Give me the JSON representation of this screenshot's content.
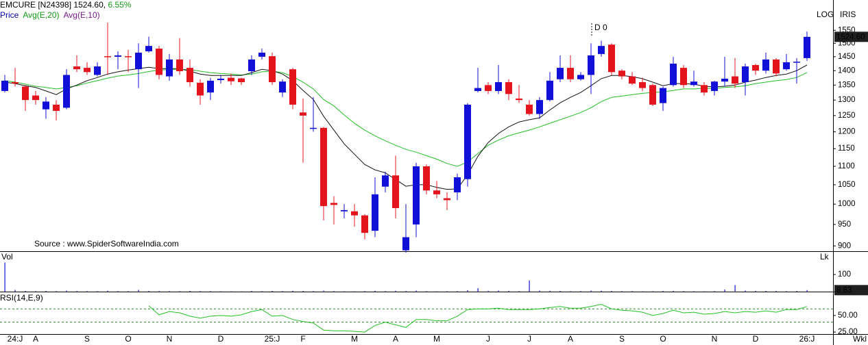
{
  "chart_data": [
    {
      "type": "candlestick",
      "title": "EMCURE [N24398]",
      "price_text": "1524.60,",
      "change_text": "6.55%",
      "log_label": "LOG",
      "scale_label": "IRIS",
      "source": "Source : www.SpiderSoftwareIndia.com",
      "x_label": "Wkl",
      "price_tag": "1524.60",
      "log": true,
      "ylim": [
        888,
        1673
      ],
      "yticks": [
        900,
        950,
        1000,
        1050,
        1100,
        1150,
        1200,
        1250,
        1300,
        1350,
        1400,
        1450,
        1500,
        1550
      ],
      "categories": [
        null,
        "24:J",
        null,
        "A",
        null,
        null,
        null,
        null,
        "S",
        null,
        null,
        null,
        "O",
        null,
        null,
        null,
        "N",
        null,
        null,
        null,
        null,
        "D",
        null,
        null,
        null,
        null,
        "25:J",
        null,
        null,
        "F",
        null,
        null,
        null,
        null,
        "M",
        null,
        null,
        null,
        "A",
        null,
        null,
        null,
        "M",
        null,
        null,
        null,
        null,
        "J",
        null,
        null,
        null,
        "J",
        null,
        null,
        null,
        "A",
        null,
        null,
        null,
        null,
        "S",
        null,
        null,
        null,
        "O",
        null,
        null,
        null,
        null,
        "N",
        null,
        null,
        null,
        "D",
        null,
        null,
        null,
        null,
        "26:J"
      ],
      "annotations": [
        {
          "text": "D 0",
          "index": 57
        }
      ],
      "series": [
        {
          "name": "Price",
          "color": "#1010d8",
          "down_color": "#e4141c",
          "label_color": "#0000aa",
          "open": [
            1330,
            1360,
            1345,
            1315,
            1270,
            1285,
            1275,
            1415,
            1410,
            1385,
            1452,
            1450,
            1452,
            1405,
            1470,
            1480,
            1380,
            1440,
            1410,
            1358,
            1325,
            1367,
            1375,
            1373,
            1398,
            1450,
            1452,
            1325,
            1405,
            1260,
            1210,
            1212,
            1003,
            982,
            982,
            972,
            935,
            1045,
            1075,
            890,
            950,
            1100,
            1035,
            1015,
            1030,
            1065,
            1330,
            1350,
            1330,
            1360,
            1305,
            1285,
            1255,
            1300,
            1370,
            1410,
            1370,
            1385,
            1460,
            1495,
            1400,
            1380,
            1360,
            1350,
            1290,
            1350,
            1410,
            1350,
            1350,
            1330,
            1362,
            1380,
            1360,
            1420,
            1400,
            1440,
            1405,
            1430,
            1445
          ],
          "high": [
            1385,
            1410,
            1350,
            1330,
            1310,
            1300,
            1405,
            1455,
            1430,
            1430,
            1580,
            1470,
            1475,
            1500,
            1525,
            1490,
            1460,
            1520,
            1440,
            1370,
            1375,
            1385,
            1390,
            1375,
            1455,
            1480,
            1465,
            1370,
            1410,
            1305,
            1310,
            1215,
            1020,
            1000,
            1000,
            975,
            1070,
            1085,
            1130,
            1000,
            1110,
            1105,
            1060,
            1030,
            1080,
            1290,
            1410,
            1360,
            1420,
            1370,
            1350,
            1300,
            1310,
            1395,
            1455,
            1455,
            1395,
            1500,
            1510,
            1500,
            1405,
            1395,
            1375,
            1355,
            1345,
            1450,
            1420,
            1400,
            1360,
            1365,
            1450,
            1445,
            1425,
            1425,
            1465,
            1445,
            1460,
            1445,
            1545
          ],
          "low": [
            1325,
            1345,
            1265,
            1285,
            1240,
            1235,
            1270,
            1395,
            1385,
            1380,
            1385,
            1405,
            1395,
            1340,
            1465,
            1370,
            1365,
            1385,
            1345,
            1285,
            1300,
            1355,
            1350,
            1350,
            1385,
            1440,
            1350,
            1310,
            1270,
            1110,
            1200,
            960,
            950,
            965,
            945,
            915,
            920,
            1030,
            965,
            885,
            920,
            1025,
            1015,
            985,
            1010,
            1045,
            1325,
            1320,
            1320,
            1300,
            1290,
            1250,
            1240,
            1295,
            1360,
            1360,
            1365,
            1320,
            1450,
            1385,
            1370,
            1350,
            1330,
            1280,
            1265,
            1345,
            1340,
            1345,
            1315,
            1315,
            1345,
            1340,
            1315,
            1385,
            1390,
            1380,
            1400,
            1355,
            1435
          ],
          "close": [
            1365,
            1355,
            1300,
            1300,
            1295,
            1265,
            1385,
            1405,
            1395,
            1415,
            1450,
            1455,
            1450,
            1465,
            1490,
            1385,
            1440,
            1398,
            1360,
            1315,
            1365,
            1372,
            1363,
            1360,
            1440,
            1465,
            1360,
            1362,
            1285,
            1250,
            1212,
            995,
            998,
            985,
            972,
            930,
            1025,
            1075,
            990,
            920,
            1100,
            1035,
            1025,
            1010,
            1070,
            1285,
            1340,
            1330,
            1360,
            1320,
            1300,
            1255,
            1300,
            1365,
            1410,
            1370,
            1385,
            1455,
            1490,
            1395,
            1380,
            1355,
            1340,
            1285,
            1340,
            1425,
            1350,
            1362,
            1325,
            1362,
            1372,
            1355,
            1415,
            1400,
            1440,
            1390,
            1430,
            1432,
            1524.6
          ]
        },
        {
          "name": "Avg(E,20)",
          "color": "#22c022",
          "label_color": "#119911",
          "values": [
            1365,
            1360,
            1353,
            1346,
            1342,
            1337,
            1342,
            1348,
            1357,
            1365,
            1374,
            1381,
            1385,
            1390,
            1397,
            1402,
            1404,
            1404,
            1404,
            1398,
            1393,
            1390,
            1388,
            1385,
            1388,
            1396,
            1398,
            1393,
            1379,
            1360,
            1337,
            1302,
            1281,
            1252,
            1226,
            1205,
            1188,
            1173,
            1160,
            1148,
            1140,
            1130,
            1120,
            1108,
            1100,
            1112,
            1136,
            1160,
            1175,
            1188,
            1197,
            1205,
            1215,
            1226,
            1237,
            1248,
            1260,
            1275,
            1295,
            1309,
            1313,
            1318,
            1322,
            1325,
            1327,
            1332,
            1337,
            1337,
            1339,
            1339,
            1342,
            1344,
            1348,
            1355,
            1360,
            1365,
            1369,
            1376,
            1393
          ]
        },
        {
          "name": "Avg(E,10)",
          "color": "#111111",
          "label_color": "#7a1a8a",
          "values": [
            1360,
            1355,
            1348,
            1342,
            1330,
            1318,
            1337,
            1350,
            1365,
            1376,
            1388,
            1396,
            1402,
            1407,
            1412,
            1407,
            1407,
            1407,
            1398,
            1388,
            1383,
            1383,
            1383,
            1383,
            1393,
            1405,
            1400,
            1388,
            1365,
            1332,
            1302,
            1248,
            1205,
            1164,
            1134,
            1105,
            1090,
            1082,
            1064,
            1046,
            1050,
            1050,
            1043,
            1038,
            1039,
            1077,
            1128,
            1168,
            1195,
            1215,
            1230,
            1237,
            1243,
            1268,
            1291,
            1309,
            1325,
            1348,
            1372,
            1383,
            1383,
            1379,
            1372,
            1360,
            1348,
            1355,
            1355,
            1353,
            1346,
            1344,
            1346,
            1350,
            1360,
            1367,
            1376,
            1383,
            1388,
            1400,
            1420
          ]
        }
      ]
    },
    {
      "type": "bar",
      "title": "Vol",
      "unit": "Lk",
      "color": "#1010d8",
      "value_tag": "8.63",
      "ylim": [
        0,
        232
      ],
      "yticks": [
        100
      ],
      "values": [
        170,
        10,
        4,
        3,
        4,
        3,
        6,
        4,
        3,
        3,
        5,
        3,
        3,
        10,
        4,
        4,
        3,
        3,
        4,
        3,
        3,
        2,
        2,
        2,
        4,
        3,
        4,
        3,
        5,
        4,
        3,
        6,
        3,
        2,
        2,
        3,
        5,
        3,
        5,
        4,
        6,
        3,
        2,
        2,
        3,
        8,
        20,
        5,
        6,
        4,
        3,
        65,
        6,
        5,
        4,
        3,
        3,
        6,
        5,
        4,
        3,
        3,
        2,
        3,
        4,
        4,
        3,
        2,
        2,
        3,
        12,
        38,
        6,
        4,
        4,
        4,
        3,
        4,
        8.63
      ]
    },
    {
      "type": "line",
      "title": "RSI(14,E,9)",
      "color": "#22c022",
      "label_color": "#0000aa",
      "ylim": [
        22,
        84
      ],
      "yticks": [
        {
          "value": 50,
          "label": "50.00"
        },
        {
          "value": 25,
          "label": "25.00"
        }
      ],
      "reference_lines": [
        40,
        60
      ],
      "values": [
        null,
        null,
        null,
        null,
        null,
        null,
        null,
        null,
        null,
        null,
        null,
        null,
        null,
        null,
        64.6,
        51,
        56,
        54,
        49,
        46,
        49,
        50,
        49,
        51,
        56,
        59,
        49,
        50,
        44,
        41,
        38.5,
        28,
        27,
        27,
        26,
        25,
        35,
        40,
        36,
        32,
        44,
        44,
        42,
        42,
        49,
        59,
        60,
        60,
        61,
        59,
        59,
        59,
        60,
        62,
        63.5,
        61,
        61,
        63.5,
        67,
        60,
        58,
        57,
        55,
        50,
        53,
        58,
        54,
        55,
        52,
        53,
        56,
        54,
        56,
        55,
        57,
        55,
        59,
        59,
        63.5
      ]
    }
  ]
}
